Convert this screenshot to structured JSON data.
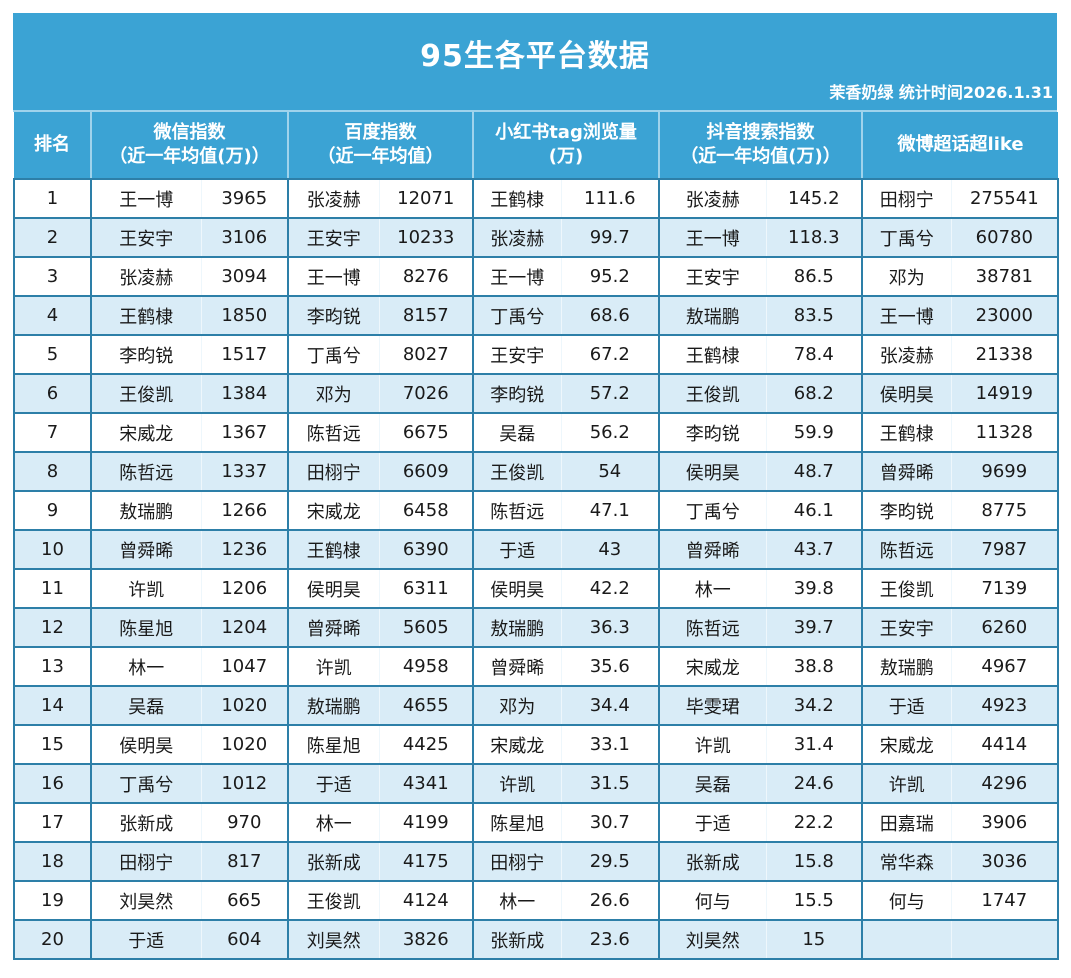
{
  "title": "95生各平台数据",
  "subtitle": "茉香奶绿  统计时间2026.1.31",
  "colors": {
    "header_bg": "#3ba3d4",
    "row_alt_bg": "#d9ecf7",
    "row_bg": "#ffffff",
    "border": "#2d7fa8"
  },
  "headers": {
    "rank": "排名",
    "wechat": {
      "line1": "微信指数",
      "line2": "（近一年均值(万)）"
    },
    "baidu": {
      "line1": "百度指数",
      "line2": "（近一年均值）"
    },
    "xhs": {
      "line1": "小红书tag浏览量",
      "line2": "(万)"
    },
    "douyin": {
      "line1": "抖音搜索指数",
      "line2": "（近一年均值(万)）"
    },
    "weibo": {
      "line1": "微博超话超like",
      "line2": ""
    }
  },
  "rows": [
    {
      "rank": "1",
      "wechat_name": "王一博",
      "wechat_val": "3965",
      "baidu_name": "张凌赫",
      "baidu_val": "12071",
      "xhs_name": "王鹤棣",
      "xhs_val": "111.6",
      "douyin_name": "张凌赫",
      "douyin_val": "145.2",
      "weibo_name": "田栩宁",
      "weibo_val": "275541"
    },
    {
      "rank": "2",
      "wechat_name": "王安宇",
      "wechat_val": "3106",
      "baidu_name": "王安宇",
      "baidu_val": "10233",
      "xhs_name": "张凌赫",
      "xhs_val": "99.7",
      "douyin_name": "王一博",
      "douyin_val": "118.3",
      "weibo_name": "丁禹兮",
      "weibo_val": "60780"
    },
    {
      "rank": "3",
      "wechat_name": "张凌赫",
      "wechat_val": "3094",
      "baidu_name": "王一博",
      "baidu_val": "8276",
      "xhs_name": "王一博",
      "xhs_val": "95.2",
      "douyin_name": "王安宇",
      "douyin_val": "86.5",
      "weibo_name": "邓为",
      "weibo_val": "38781"
    },
    {
      "rank": "4",
      "wechat_name": "王鹤棣",
      "wechat_val": "1850",
      "baidu_name": "李昀锐",
      "baidu_val": "8157",
      "xhs_name": "丁禹兮",
      "xhs_val": "68.6",
      "douyin_name": "敖瑞鹏",
      "douyin_val": "83.5",
      "weibo_name": "王一博",
      "weibo_val": "23000"
    },
    {
      "rank": "5",
      "wechat_name": "李昀锐",
      "wechat_val": "1517",
      "baidu_name": "丁禹兮",
      "baidu_val": "8027",
      "xhs_name": "王安宇",
      "xhs_val": "67.2",
      "douyin_name": "王鹤棣",
      "douyin_val": "78.4",
      "weibo_name": "张凌赫",
      "weibo_val": "21338"
    },
    {
      "rank": "6",
      "wechat_name": "王俊凯",
      "wechat_val": "1384",
      "baidu_name": "邓为",
      "baidu_val": "7026",
      "xhs_name": "李昀锐",
      "xhs_val": "57.2",
      "douyin_name": "王俊凯",
      "douyin_val": "68.2",
      "weibo_name": "侯明昊",
      "weibo_val": "14919"
    },
    {
      "rank": "7",
      "wechat_name": "宋威龙",
      "wechat_val": "1367",
      "baidu_name": "陈哲远",
      "baidu_val": "6675",
      "xhs_name": "吴磊",
      "xhs_val": "56.2",
      "douyin_name": "李昀锐",
      "douyin_val": "59.9",
      "weibo_name": "王鹤棣",
      "weibo_val": "11328"
    },
    {
      "rank": "8",
      "wechat_name": "陈哲远",
      "wechat_val": "1337",
      "baidu_name": "田栩宁",
      "baidu_val": "6609",
      "xhs_name": "王俊凯",
      "xhs_val": "54",
      "douyin_name": "侯明昊",
      "douyin_val": "48.7",
      "weibo_name": "曾舜晞",
      "weibo_val": "9699"
    },
    {
      "rank": "9",
      "wechat_name": "敖瑞鹏",
      "wechat_val": "1266",
      "baidu_name": "宋威龙",
      "baidu_val": "6458",
      "xhs_name": "陈哲远",
      "xhs_val": "47.1",
      "douyin_name": "丁禹兮",
      "douyin_val": "46.1",
      "weibo_name": "李昀锐",
      "weibo_val": "8775"
    },
    {
      "rank": "10",
      "wechat_name": "曾舜晞",
      "wechat_val": "1236",
      "baidu_name": "王鹤棣",
      "baidu_val": "6390",
      "xhs_name": "于适",
      "xhs_val": "43",
      "douyin_name": "曾舜晞",
      "douyin_val": "43.7",
      "weibo_name": "陈哲远",
      "weibo_val": "7987"
    },
    {
      "rank": "11",
      "wechat_name": "许凯",
      "wechat_val": "1206",
      "baidu_name": "侯明昊",
      "baidu_val": "6311",
      "xhs_name": "侯明昊",
      "xhs_val": "42.2",
      "douyin_name": "林一",
      "douyin_val": "39.8",
      "weibo_name": "王俊凯",
      "weibo_val": "7139"
    },
    {
      "rank": "12",
      "wechat_name": "陈星旭",
      "wechat_val": "1204",
      "baidu_name": "曾舜晞",
      "baidu_val": "5605",
      "xhs_name": "敖瑞鹏",
      "xhs_val": "36.3",
      "douyin_name": "陈哲远",
      "douyin_val": "39.7",
      "weibo_name": "王安宇",
      "weibo_val": "6260"
    },
    {
      "rank": "13",
      "wechat_name": "林一",
      "wechat_val": "1047",
      "baidu_name": "许凯",
      "baidu_val": "4958",
      "xhs_name": "曾舜晞",
      "xhs_val": "35.6",
      "douyin_name": "宋威龙",
      "douyin_val": "38.8",
      "weibo_name": "敖瑞鹏",
      "weibo_val": "4967"
    },
    {
      "rank": "14",
      "wechat_name": "吴磊",
      "wechat_val": "1020",
      "baidu_name": "敖瑞鹏",
      "baidu_val": "4655",
      "xhs_name": "邓为",
      "xhs_val": "34.4",
      "douyin_name": "毕雯珺",
      "douyin_val": "34.2",
      "weibo_name": "于适",
      "weibo_val": "4923"
    },
    {
      "rank": "15",
      "wechat_name": "侯明昊",
      "wechat_val": "1020",
      "baidu_name": "陈星旭",
      "baidu_val": "4425",
      "xhs_name": "宋威龙",
      "xhs_val": "33.1",
      "douyin_name": "许凯",
      "douyin_val": "31.4",
      "weibo_name": "宋威龙",
      "weibo_val": "4414"
    },
    {
      "rank": "16",
      "wechat_name": "丁禹兮",
      "wechat_val": "1012",
      "baidu_name": "于适",
      "baidu_val": "4341",
      "xhs_name": "许凯",
      "xhs_val": "31.5",
      "douyin_name": "吴磊",
      "douyin_val": "24.6",
      "weibo_name": "许凯",
      "weibo_val": "4296"
    },
    {
      "rank": "17",
      "wechat_name": "张新成",
      "wechat_val": "970",
      "baidu_name": "林一",
      "baidu_val": "4199",
      "xhs_name": "陈星旭",
      "xhs_val": "30.7",
      "douyin_name": "于适",
      "douyin_val": "22.2",
      "weibo_name": "田嘉瑞",
      "weibo_val": "3906"
    },
    {
      "rank": "18",
      "wechat_name": "田栩宁",
      "wechat_val": "817",
      "baidu_name": "张新成",
      "baidu_val": "4175",
      "xhs_name": "田栩宁",
      "xhs_val": "29.5",
      "douyin_name": "张新成",
      "douyin_val": "15.8",
      "weibo_name": "常华森",
      "weibo_val": "3036"
    },
    {
      "rank": "19",
      "wechat_name": "刘昊然",
      "wechat_val": "665",
      "baidu_name": "王俊凯",
      "baidu_val": "4124",
      "xhs_name": "林一",
      "xhs_val": "26.6",
      "douyin_name": "何与",
      "douyin_val": "15.5",
      "weibo_name": "何与",
      "weibo_val": "1747"
    },
    {
      "rank": "20",
      "wechat_name": "于适",
      "wechat_val": "604",
      "baidu_name": "刘昊然",
      "baidu_val": "3826",
      "xhs_name": "张新成",
      "xhs_val": "23.6",
      "douyin_name": "刘昊然",
      "douyin_val": "15",
      "weibo_name": "",
      "weibo_val": ""
    }
  ]
}
